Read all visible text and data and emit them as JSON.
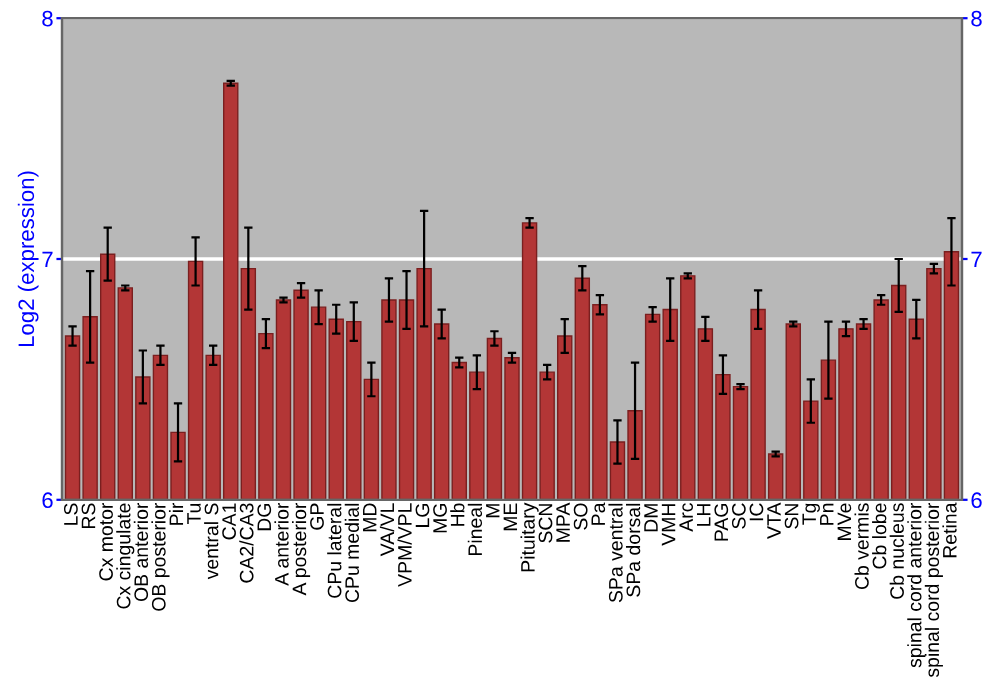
{
  "chart_data": {
    "type": "bar",
    "ylabel": "Log2 (expression)",
    "categories": [
      "LS",
      "RS",
      "Cx motor",
      "Cx cingulate",
      "OB anterior",
      "OB posterior",
      "Pir",
      "Tu",
      "ventral S",
      "CA1",
      "CA2/CA3",
      "DG",
      "A anterior",
      "A posterior",
      "GP",
      "CPu lateral",
      "CPu medial",
      "MD",
      "VA/VL",
      "VPM/VPL",
      "LG",
      "MG",
      "Hb",
      "Pineal",
      "M",
      "ME",
      "Pituitary",
      "SCN",
      "MPA",
      "SO",
      "Pa",
      "SPa ventral",
      "SPa dorsal",
      "DM",
      "VMH",
      "Arc",
      "LH",
      "PAG",
      "SC",
      "IC",
      "VTA",
      "SN",
      "Tg",
      "Pn",
      "MVe",
      "Cb vermis",
      "Cb lobe",
      "Cb nucleus",
      "spinal cord anterior",
      "spinal cord posterior",
      "Retina"
    ],
    "values": [
      6.68,
      6.76,
      7.02,
      6.88,
      6.51,
      6.6,
      6.28,
      6.99,
      6.6,
      7.73,
      6.96,
      6.69,
      6.83,
      6.87,
      6.8,
      6.75,
      6.74,
      6.5,
      6.83,
      6.83,
      6.96,
      6.73,
      6.57,
      6.53,
      6.67,
      6.59,
      7.15,
      6.53,
      6.68,
      6.92,
      6.81,
      6.24,
      6.37,
      6.77,
      6.79,
      6.93,
      6.71,
      6.52,
      6.47,
      6.79,
      6.19,
      6.73,
      6.41,
      6.58,
      6.71,
      6.73,
      6.83,
      6.89,
      6.75,
      6.96,
      7.03
    ],
    "errors": [
      0.04,
      0.19,
      0.11,
      0.01,
      0.11,
      0.04,
      0.12,
      0.1,
      0.04,
      0.01,
      0.17,
      0.06,
      0.01,
      0.03,
      0.07,
      0.06,
      0.08,
      0.07,
      0.09,
      0.12,
      0.24,
      0.06,
      0.02,
      0.07,
      0.03,
      0.02,
      0.02,
      0.03,
      0.07,
      0.05,
      0.04,
      0.09,
      0.2,
      0.03,
      0.13,
      0.01,
      0.05,
      0.08,
      0.01,
      0.08,
      0.01,
      0.01,
      0.09,
      0.16,
      0.03,
      0.02,
      0.02,
      0.11,
      0.08,
      0.02,
      0.14
    ],
    "color": "#b33636",
    "ylim": [
      6,
      8
    ],
    "yticks": [
      6,
      7,
      8
    ],
    "y2lim": [
      6,
      8
    ],
    "y2ticks": [
      6,
      7,
      8
    ],
    "grid": "y"
  }
}
